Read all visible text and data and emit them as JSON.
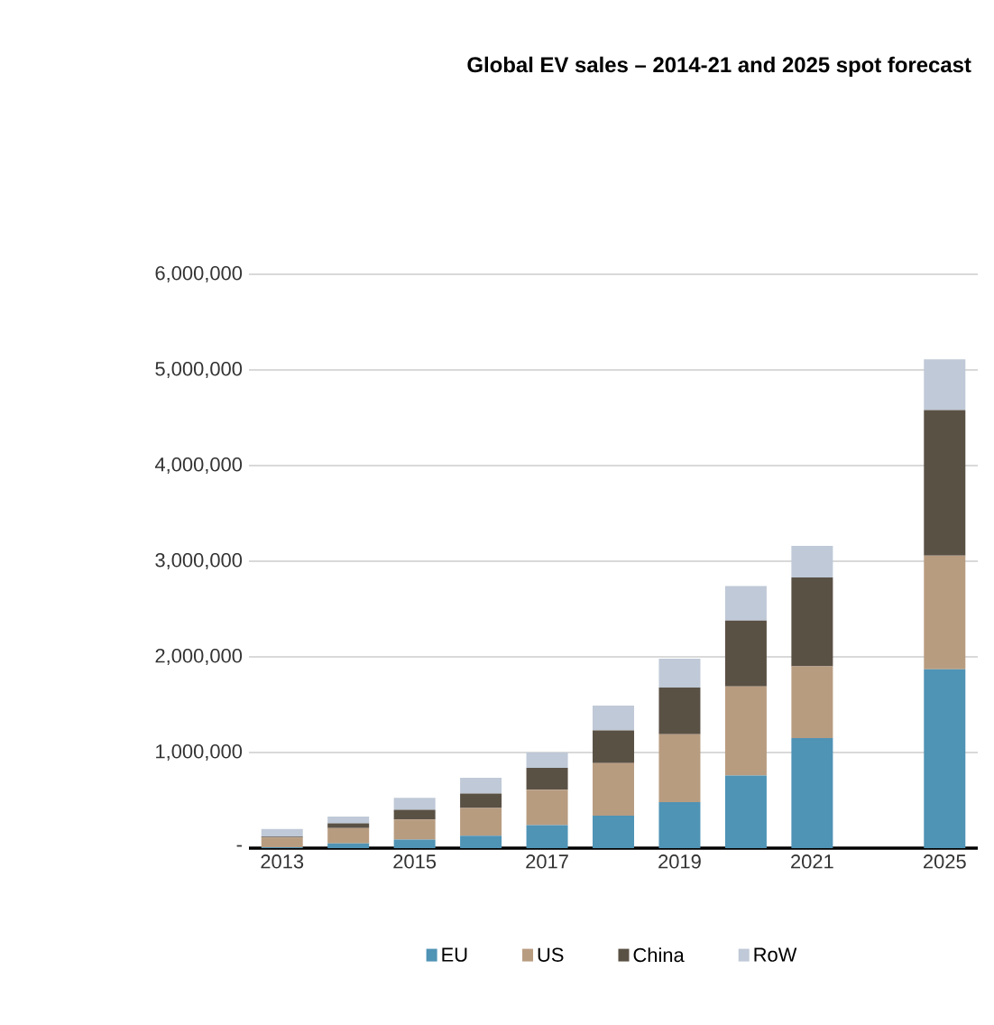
{
  "chart_data": {
    "type": "bar",
    "stacked": true,
    "title": "Global EV sales – 2014-21 and 2025 spot forecast",
    "categories": [
      "2013",
      null,
      "2015",
      null,
      "2017",
      null,
      "2019",
      null,
      "2021",
      null,
      "2025"
    ],
    "series": [
      {
        "name": "EU",
        "color": "#4f93b5",
        "values": [
          10000,
          50000,
          90000,
          130000,
          240000,
          340000,
          480000,
          760000,
          1150000,
          null,
          1870000
        ]
      },
      {
        "name": "US",
        "color": "#b89c80",
        "values": [
          100000,
          160000,
          210000,
          290000,
          370000,
          550000,
          710000,
          930000,
          750000,
          null,
          1190000
        ]
      },
      {
        "name": "China",
        "color": "#5a5145",
        "values": [
          10000,
          50000,
          100000,
          150000,
          230000,
          340000,
          490000,
          690000,
          930000,
          null,
          1520000
        ]
      },
      {
        "name": "RoW",
        "color": "#bfc9d7",
        "values": [
          80000,
          70000,
          125000,
          165000,
          160000,
          260000,
          300000,
          360000,
          330000,
          null,
          530000
        ]
      }
    ],
    "ylim": [
      0,
      6000000
    ],
    "yticks": [
      {
        "value": 0,
        "label": "-"
      },
      {
        "value": 1000000,
        "label": "1,000,000"
      },
      {
        "value": 2000000,
        "label": "2,000,000"
      },
      {
        "value": 3000000,
        "label": "3,000,000"
      },
      {
        "value": 4000000,
        "label": "4,000,000"
      },
      {
        "value": 5000000,
        "label": "5,000,000"
      },
      {
        "value": 6000000,
        "label": "6,000,000"
      }
    ],
    "grid": "y",
    "legend": "bottom"
  }
}
